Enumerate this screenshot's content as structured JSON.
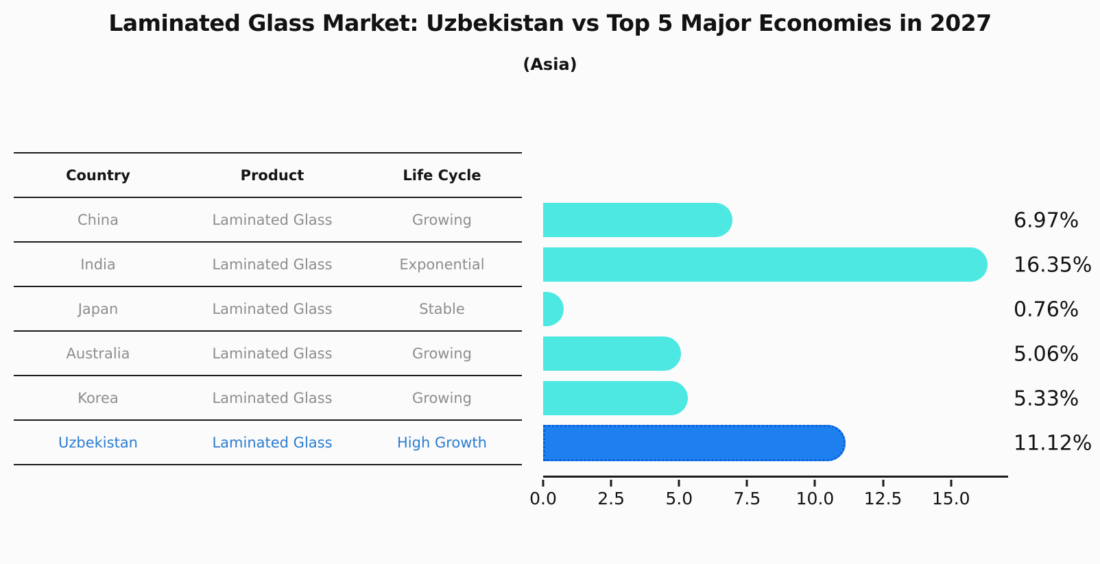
{
  "header": {
    "title": "Laminated Glass Market: Uzbekistan vs Top 5 Major Economies in 2027",
    "subtitle": "(Asia)"
  },
  "table": {
    "columns": [
      "Country",
      "Product",
      "Life Cycle"
    ]
  },
  "chart_data": {
    "type": "bar",
    "orientation": "horizontal",
    "title": "Laminated Glass Market: Uzbekistan vs Top 5 Major Economies in 2027",
    "subtitle": "(Asia)",
    "xlabel": "",
    "ylabel": "",
    "grid": false,
    "legend": "none",
    "xlim": [
      0,
      17.1
    ],
    "x_ticks": [
      0,
      2.5,
      5,
      7.5,
      10,
      12.5,
      15
    ],
    "x_tick_labels": [
      "0.0",
      "2.5",
      "5.0",
      "7.5",
      "10.0",
      "12.5",
      "15.0"
    ],
    "categories": [
      "China",
      "India",
      "Japan",
      "Australia",
      "Korea",
      "Uzbekistan"
    ],
    "values": [
      6.97,
      16.35,
      0.76,
      5.06,
      5.33,
      11.12
    ],
    "rows": [
      {
        "country": "China",
        "product": "Laminated Glass",
        "life_cycle": "Growing",
        "value": 6.97,
        "value_label": "6.97%",
        "highlight": false
      },
      {
        "country": "India",
        "product": "Laminated Glass",
        "life_cycle": "Exponential",
        "value": 16.35,
        "value_label": "16.35%",
        "highlight": false
      },
      {
        "country": "Japan",
        "product": "Laminated Glass",
        "life_cycle": "Stable",
        "value": 0.76,
        "value_label": "0.76%",
        "highlight": false
      },
      {
        "country": "Australia",
        "product": "Laminated Glass",
        "life_cycle": "Growing",
        "value": 5.06,
        "value_label": "5.06%",
        "highlight": false
      },
      {
        "country": "Korea",
        "product": "Laminated Glass",
        "life_cycle": "Growing",
        "value": 5.33,
        "value_label": "5.33%",
        "highlight": false
      },
      {
        "country": "Uzbekistan",
        "product": "Laminated Glass",
        "life_cycle": "High Growth",
        "value": 11.12,
        "value_label": "11.12%",
        "highlight": true
      }
    ],
    "colors": {
      "bar": "#4de8e2",
      "highlight_bar": "#1d80ee",
      "highlight_border": "#0c5ed8",
      "highlight_text": "#2a7cd0",
      "line": "#1a1a1a",
      "muted_text": "#8d8d8d",
      "background": "#fbfbfb"
    }
  }
}
